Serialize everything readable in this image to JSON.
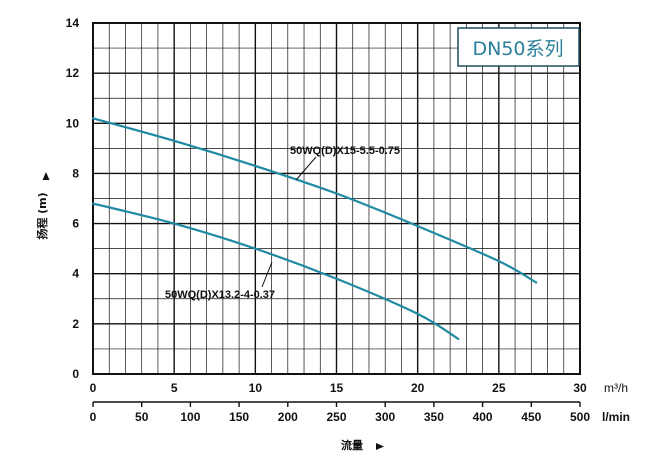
{
  "chart_data": {
    "type": "line",
    "title": "DN50系列",
    "xlabel": "流量",
    "ylabel": "扬程 (m)",
    "x_unit": "m³/h",
    "x2_unit": "l/min",
    "xlim": [
      0,
      30
    ],
    "ylim": [
      0,
      14
    ],
    "x_ticks": [
      "0",
      "5",
      "10",
      "15",
      "20",
      "25",
      "30"
    ],
    "x2_ticks": [
      "0",
      "50",
      "100",
      "150",
      "200",
      "250",
      "300",
      "350",
      "400",
      "450",
      "500"
    ],
    "y_ticks": [
      "0",
      "2",
      "4",
      "6",
      "8",
      "10",
      "12",
      "14"
    ],
    "grid": true,
    "series": [
      {
        "name": "50WQ(D)X15-5.5-0.75",
        "x": [
          0,
          5,
          10,
          15,
          20,
          25,
          27.3
        ],
        "y": [
          10.2,
          9.3,
          8.3,
          7.2,
          5.9,
          4.5,
          3.65
        ]
      },
      {
        "name": "50WQ(D)X13.2-4-0.37",
        "x": [
          0,
          5,
          10,
          15,
          20,
          22.5
        ],
        "y": [
          6.8,
          6.0,
          5.0,
          3.8,
          2.4,
          1.4
        ]
      }
    ],
    "colors": {
      "curves": "#1f8aa3",
      "grid": "#111111",
      "badge_text": "#2a7f9b",
      "badge_border": "#1a4f60"
    }
  }
}
